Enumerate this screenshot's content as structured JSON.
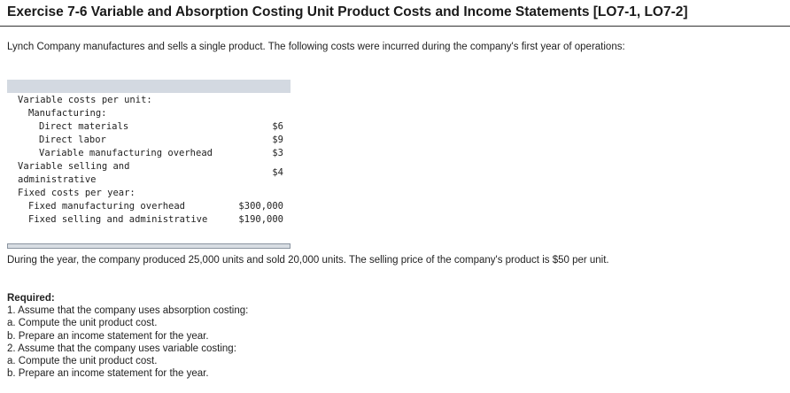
{
  "title": "Exercise 7-6 Variable and Absorption Costing Unit Product Costs and Income Statements [LO7-1, LO7-2]",
  "intro": "Lynch Company manufactures and sells a single product. The following costs were incurred during the company's first year of operations:",
  "table": {
    "variable_heading": "Variable costs per unit:",
    "manufacturing_heading": "Manufacturing:",
    "direct_materials_label": "Direct materials",
    "direct_materials_value": "$6",
    "direct_labor_label": "Direct labor",
    "direct_labor_value": "$9",
    "var_mfg_overhead_label": "Variable manufacturing overhead",
    "var_mfg_overhead_value": "$3",
    "var_selling_label_1": "Variable selling and",
    "var_selling_label_2": "administrative",
    "var_selling_value": "$4",
    "fixed_heading": "Fixed costs per year:",
    "fixed_mfg_label": "Fixed manufacturing overhead",
    "fixed_mfg_value": "$300,000",
    "fixed_selling_label": "Fixed selling and administrative",
    "fixed_selling_value": "$190,000"
  },
  "paragraph": "During the year, the company produced 25,000 units and sold 20,000 units. The selling price of the company's product is $50 per unit.",
  "required": {
    "heading": "Required:",
    "items": [
      "1. Assume that the company uses absorption costing:",
      "a. Compute the unit product cost.",
      "b. Prepare an income statement for the year.",
      "2. Assume that the company uses variable costing:",
      "a. Compute the unit product cost.",
      "b. Prepare an income statement for the year."
    ]
  }
}
